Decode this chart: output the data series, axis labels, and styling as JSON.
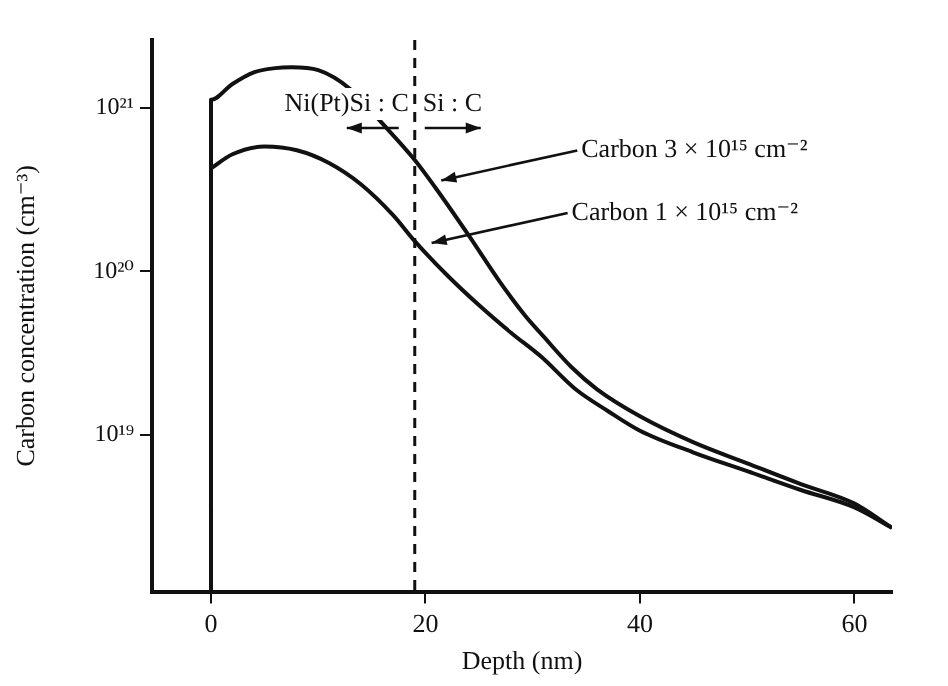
{
  "chart_data": {
    "type": "line",
    "xlabel": "Depth (nm)",
    "ylabel": "Carbon concentration (cm⁻³)",
    "log": "y",
    "grid": false,
    "legend": false,
    "marker": "none",
    "line_style": "solid",
    "xlim": [
      -5.5,
      63.5
    ],
    "xticks": [
      0,
      20,
      40,
      60
    ],
    "ylim": [
      1.1e+18,
      2.6e+21
    ],
    "yticks": [
      {
        "value": 1e+19,
        "label": "10¹⁹"
      },
      {
        "value": 1e+20,
        "label": "10²⁰"
      },
      {
        "value": 1e+21,
        "label": "10²¹"
      }
    ],
    "series": [
      {
        "color": "#111111",
        "x": [
          0,
          0,
          2,
          4,
          6,
          7.5,
          10,
          13,
          16,
          19,
          21,
          24,
          27,
          29.3,
          31,
          33.6,
          36,
          40,
          45,
          50,
          55,
          60,
          63.5
        ],
        "values": [
          1.1e+18,
          1.12e+21,
          1.4e+21,
          1.65e+21,
          1.75e+21,
          1.77e+21,
          1.7e+21,
          1.3e+21,
          8e+20,
          4.8e+20,
          3.2e+20,
          1.67e+20,
          8.5e+19,
          5.35e+19,
          4e+19,
          2.6e+19,
          1.9e+19,
          1.3e+19,
          9e+18,
          6.7e+18,
          5e+18,
          3.8e+18,
          2.7e+18
        ]
      },
      {
        "color": "#111111",
        "x": [
          0,
          2,
          5,
          8,
          11,
          14,
          17,
          19,
          22,
          25,
          28,
          30.8,
          34,
          37,
          40,
          45,
          50,
          55,
          60,
          63.5
        ],
        "values": [
          4.26e+20,
          5.2e+20,
          5.8e+20,
          5.5e+20,
          4.6e+20,
          3.4e+20,
          2.2e+20,
          1.53e+20,
          9.5e+19,
          6.2e+19,
          4.2e+19,
          3e+19,
          1.9e+19,
          1.4e+19,
          1.06e+19,
          7.8e+18,
          6e+18,
          4.6e+18,
          3.6e+18,
          2.7e+18
        ]
      }
    ],
    "ref_lines": [
      {
        "axis": "x",
        "value": 19,
        "line_style": "dashed",
        "color": "#111111"
      }
    ],
    "annotations": [
      "Ni(Pt)Si : C",
      "Si : C",
      {
        "text": "Carbon 3 × 10¹⁵ cm⁻²",
        "x": 21.1,
        "y": 3.5e+20
      },
      {
        "text": "Carbon 1 × 10¹⁵ cm⁻²",
        "x": 20.2,
        "y": 1.45e+20
      }
    ]
  }
}
